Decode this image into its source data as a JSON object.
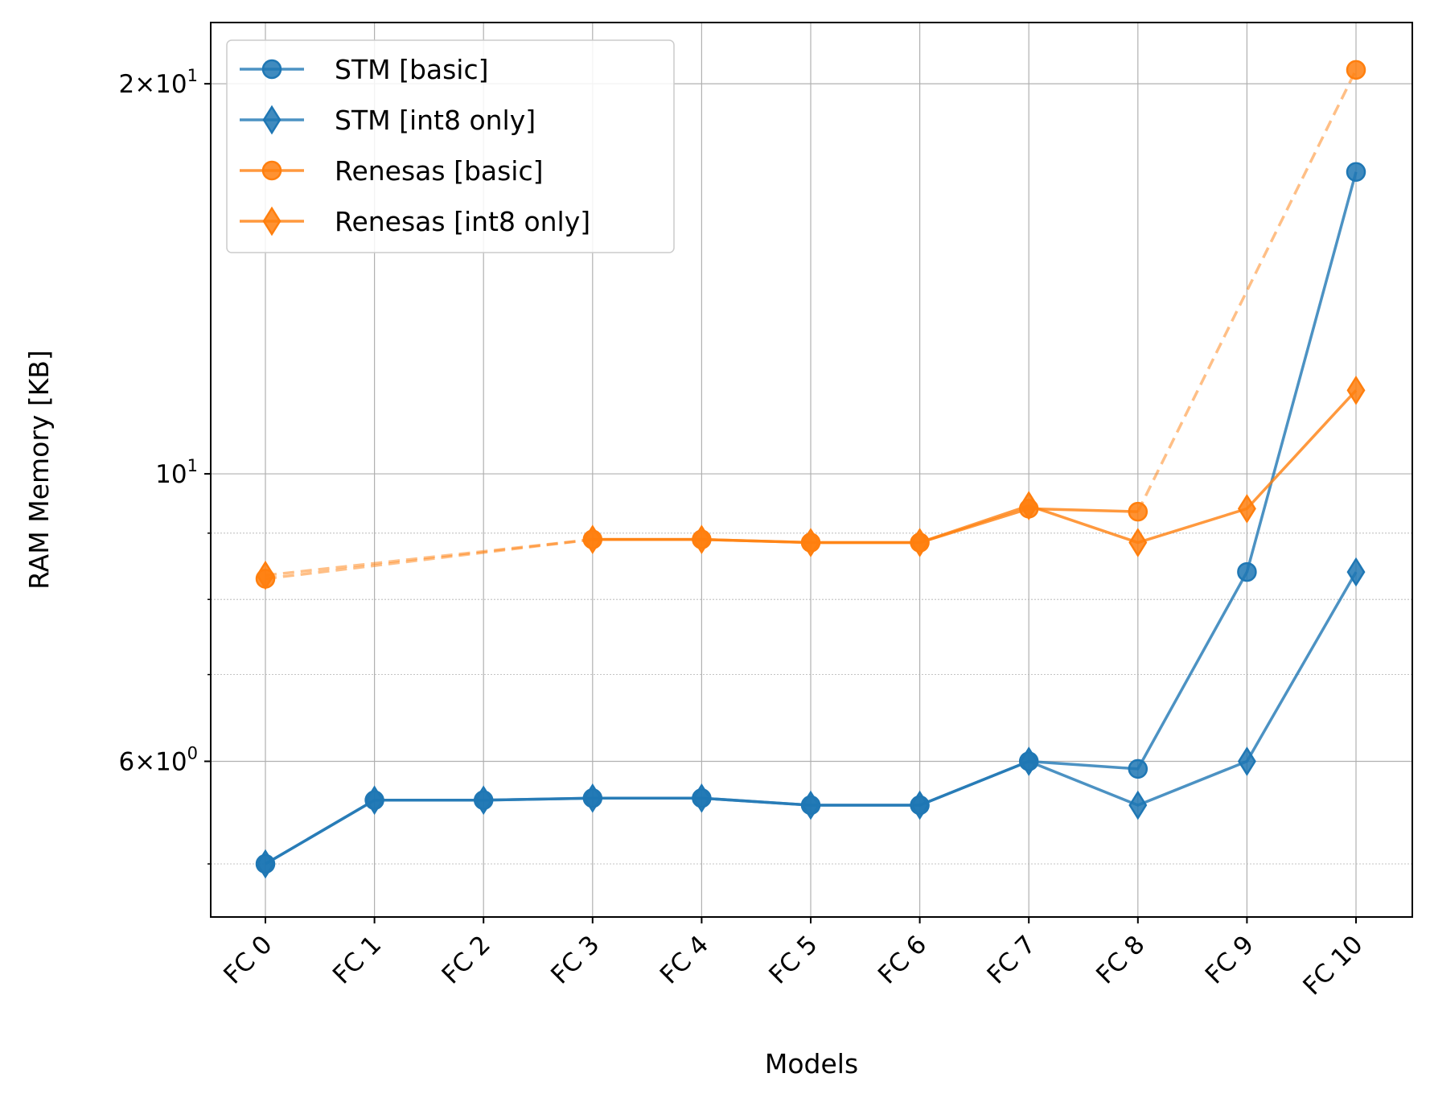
{
  "chart_data": {
    "type": "line",
    "title": "",
    "xlabel": "Models",
    "ylabel": "RAM Memory [KB]",
    "yscale": "log",
    "ylim": [
      4.55,
      22.3
    ],
    "grid": true,
    "minor_grid": true,
    "legend_position": "top-left",
    "categories": [
      "FC 0",
      "FC 1",
      "FC 2",
      "FC 3",
      "FC 4",
      "FC 5",
      "FC 6",
      "FC 7",
      "FC 8",
      "FC 9",
      "FC 10"
    ],
    "y_ticks": [
      {
        "value": 6,
        "mantissa": "6",
        "exponent": "0"
      },
      {
        "value": 10,
        "mantissa": "",
        "exponent": "1"
      },
      {
        "value": 20,
        "mantissa": "2",
        "exponent": "1"
      }
    ],
    "minor_y_ticks": [
      5,
      7,
      8,
      9
    ],
    "series": [
      {
        "name": "STM [basic]",
        "color": "#1f77b4",
        "marker": "circle",
        "values": [
          5.0,
          5.6,
          5.6,
          5.62,
          5.62,
          5.55,
          5.55,
          6.0,
          5.92,
          8.4,
          17.1
        ],
        "gap_indices": []
      },
      {
        "name": "STM [int8 only]",
        "color": "#1f77b4",
        "marker": "diamond",
        "values": [
          5.0,
          5.6,
          5.6,
          5.62,
          5.62,
          5.55,
          5.55,
          6.0,
          5.55,
          6.0,
          8.4
        ],
        "gap_indices": []
      },
      {
        "name": "Renesas [basic]",
        "color": "#ff7f0e",
        "marker": "circle",
        "values": [
          8.3,
          null,
          null,
          8.9,
          8.9,
          8.85,
          8.85,
          9.4,
          9.35,
          null,
          20.5
        ],
        "gap_indices": [
          1,
          2,
          9
        ]
      },
      {
        "name": "Renesas [int8 only]",
        "color": "#ff7f0e",
        "marker": "diamond",
        "values": [
          8.35,
          null,
          null,
          8.9,
          8.9,
          8.85,
          8.85,
          9.45,
          8.85,
          9.4,
          11.6
        ],
        "gap_indices": [
          1,
          2
        ]
      }
    ]
  }
}
